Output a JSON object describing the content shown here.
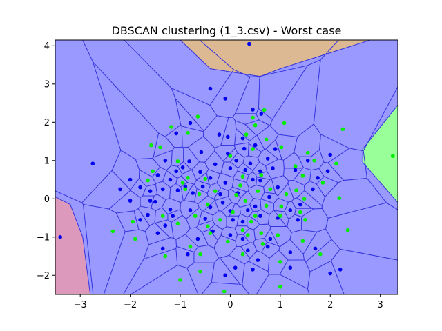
{
  "chart_data": {
    "type": "scatter",
    "title": "DBSCAN clustering (1_3.csv) - Worst case",
    "xlabel": "",
    "ylabel": "",
    "xlim": [
      -3.5,
      3.35
    ],
    "ylim": [
      -2.5,
      4.15
    ],
    "xticks": [
      -3,
      -2,
      -1,
      0,
      1,
      2,
      3
    ],
    "yticks": [
      -2,
      -1,
      0,
      1,
      2,
      3,
      4
    ],
    "grid": false,
    "colors": {
      "blue_region": "#9999ff",
      "cell_edge": "#3333dd",
      "orange_region": "#ddb993",
      "pink_region": "#dd99bb",
      "green_region": "#99ff99",
      "blue_points": "#0000ee",
      "green_points": "#00ee00"
    },
    "regions": [
      {
        "name": "orange",
        "polygon": [
          [
            -1.0,
            4.15
          ],
          [
            2.8,
            4.15
          ],
          [
            1.0,
            3.4
          ],
          [
            0.6,
            3.2
          ],
          [
            -0.4,
            3.4
          ]
        ]
      },
      {
        "name": "pink",
        "polygon": [
          [
            -3.5,
            0.05
          ],
          [
            -3.2,
            -0.15
          ],
          [
            -2.95,
            -1.0
          ],
          [
            -2.8,
            -2.5
          ],
          [
            -3.5,
            -2.5
          ]
        ]
      },
      {
        "name": "green",
        "polygon": [
          [
            3.35,
            2.45
          ],
          [
            2.65,
            1.3
          ],
          [
            2.65,
            0.95
          ],
          [
            3.35,
            -0.1
          ]
        ]
      }
    ],
    "series": [
      {
        "name": "blue",
        "points": [
          [
            0.38,
            4.05
          ],
          [
            -0.4,
            2.88
          ],
          [
            -0.1,
            2.62
          ],
          [
            0.45,
            2.33
          ],
          [
            0.62,
            2.22
          ],
          [
            -0.8,
            1.98
          ],
          [
            -0.22,
            1.68
          ],
          [
            -0.05,
            1.62
          ],
          [
            0.25,
            1.58
          ],
          [
            -1.08,
            1.71
          ],
          [
            -0.58,
            1.22
          ],
          [
            0.28,
            1.31
          ],
          [
            -0.82,
            0.98
          ],
          [
            -0.95,
            0.82
          ],
          [
            -1.3,
            1.0
          ],
          [
            -1.08,
            0.72
          ],
          [
            -0.6,
            0.7
          ],
          [
            -0.3,
            0.9
          ],
          [
            0.0,
            0.8
          ],
          [
            0.3,
            0.75
          ],
          [
            0.6,
            0.72
          ],
          [
            0.85,
            0.8
          ],
          [
            -1.45,
            0.62
          ],
          [
            -1.2,
            0.5
          ],
          [
            -0.4,
            0.55
          ],
          [
            0.6,
            0.48
          ],
          [
            -0.9,
            0.32
          ],
          [
            -0.55,
            0.32
          ],
          [
            -0.1,
            0.42
          ],
          [
            0.95,
            0.3
          ],
          [
            -1.6,
            0.2
          ],
          [
            -1.35,
            0.25
          ],
          [
            -1.05,
            0.22
          ],
          [
            -0.2,
            0.12
          ],
          [
            0.15,
            0.15
          ],
          [
            -2.0,
            -0.05
          ],
          [
            -1.5,
            -0.08
          ],
          [
            -1.2,
            -0.28
          ],
          [
            -0.8,
            -0.3
          ],
          [
            -0.4,
            -0.22
          ],
          [
            0.0,
            -0.32
          ],
          [
            0.5,
            -0.2
          ],
          [
            -1.65,
            -0.42
          ],
          [
            -1.15,
            -0.45
          ],
          [
            -0.5,
            -0.52
          ],
          [
            0.05,
            -0.55
          ],
          [
            0.25,
            -0.6
          ],
          [
            -1.8,
            -0.55
          ],
          [
            -1.3,
            -0.7
          ],
          [
            -0.35,
            -0.85
          ],
          [
            0.0,
            -0.95
          ],
          [
            0.25,
            -1.05
          ],
          [
            -0.65,
            -1.05
          ],
          [
            -1.35,
            -1.3
          ],
          [
            -0.85,
            -1.45
          ],
          [
            0.35,
            -1.35
          ],
          [
            0.55,
            -1.6
          ],
          [
            0.1,
            -1.8
          ],
          [
            -0.1,
            -2.0
          ],
          [
            0.45,
            -1.85
          ],
          [
            -2.2,
            0.25
          ],
          [
            -2.0,
            0.5
          ],
          [
            -1.8,
            0.3
          ],
          [
            -2.75,
            0.92
          ],
          [
            -3.4,
            -1.0
          ],
          [
            2.0,
            1.15
          ],
          [
            1.95,
            0.72
          ],
          [
            1.75,
            0.55
          ],
          [
            1.65,
            0.25
          ],
          [
            1.3,
            0.75
          ],
          [
            1.55,
            1.0
          ],
          [
            1.4,
            -0.15
          ],
          [
            1.2,
            -0.3
          ],
          [
            0.95,
            -0.5
          ],
          [
            1.35,
            -0.55
          ],
          [
            1.2,
            -1.4
          ],
          [
            0.8,
            -1.05
          ],
          [
            1.7,
            -1.3
          ],
          [
            2.0,
            -1.95
          ],
          [
            2.2,
            -1.85
          ],
          [
            1.2,
            -1.8
          ],
          [
            0.45,
            0.5
          ],
          [
            0.4,
            0.92
          ],
          [
            0.75,
            1.05
          ],
          [
            -0.05,
            1.18
          ],
          [
            0.12,
            1.0
          ],
          [
            0.9,
            1.3
          ],
          [
            0.5,
            1.4
          ],
          [
            -1.6,
            -0.05
          ],
          [
            -0.75,
            0.15
          ],
          [
            0.78,
            0.05
          ],
          [
            -0.15,
            -0.1
          ],
          [
            0.35,
            -0.3
          ],
          [
            0.6,
            -0.45
          ],
          [
            -1.45,
            -0.9
          ],
          [
            0.75,
            -1.25
          ]
        ]
      },
      {
        "name": "green",
        "points": [
          [
            0.68,
            2.32
          ],
          [
            0.45,
            2.12
          ],
          [
            -0.65,
            2.15
          ],
          [
            0.5,
            1.92
          ],
          [
            1.08,
            1.98
          ],
          [
            -1.18,
            1.88
          ],
          [
            2.25,
            1.82
          ],
          [
            -0.85,
            1.72
          ],
          [
            0.32,
            1.68
          ],
          [
            0.72,
            1.55
          ],
          [
            -1.58,
            1.4
          ],
          [
            -1.4,
            1.35
          ],
          [
            0.45,
            1.3
          ],
          [
            1.02,
            1.35
          ],
          [
            0.0,
            1.12
          ],
          [
            -1.05,
            0.98
          ],
          [
            1.3,
            0.85
          ],
          [
            1.68,
            1.0
          ],
          [
            2.12,
            0.92
          ],
          [
            -1.55,
            0.72
          ],
          [
            -0.85,
            0.55
          ],
          [
            -0.5,
            0.52
          ],
          [
            0.25,
            0.58
          ],
          [
            0.62,
            0.62
          ],
          [
            1.45,
            0.6
          ],
          [
            1.85,
            0.42
          ],
          [
            -1.65,
            0.48
          ],
          [
            -0.95,
            0.42
          ],
          [
            0.2,
            0.35
          ],
          [
            0.8,
            0.25
          ],
          [
            1.32,
            0.22
          ],
          [
            -0.62,
            0.12
          ],
          [
            0.12,
            0.1
          ],
          [
            1.12,
            0.12
          ],
          [
            1.48,
            0.0
          ],
          [
            2.18,
            0.02
          ],
          [
            -0.45,
            -0.15
          ],
          [
            0.3,
            -0.05
          ],
          [
            0.72,
            -0.18
          ],
          [
            1.02,
            -0.2
          ],
          [
            -1.35,
            -0.45
          ],
          [
            -0.7,
            -0.45
          ],
          [
            0.5,
            -0.45
          ],
          [
            1.0,
            -0.45
          ],
          [
            1.4,
            -0.35
          ],
          [
            -1.95,
            -0.6
          ],
          [
            -1.05,
            -0.65
          ],
          [
            -0.45,
            -0.72
          ],
          [
            0.42,
            -0.6
          ],
          [
            1.5,
            -0.55
          ],
          [
            -2.35,
            -0.85
          ],
          [
            -1.9,
            -1.05
          ],
          [
            -0.4,
            -0.9
          ],
          [
            0.25,
            -0.82
          ],
          [
            0.62,
            -0.9
          ],
          [
            0.95,
            -0.95
          ],
          [
            2.35,
            -0.82
          ],
          [
            -0.8,
            -1.25
          ],
          [
            -0.05,
            -1.12
          ],
          [
            0.65,
            -1.18
          ],
          [
            1.45,
            -1.1
          ],
          [
            1.8,
            -1.45
          ],
          [
            -1.3,
            -1.5
          ],
          [
            -0.6,
            -1.45
          ],
          [
            0.25,
            -1.45
          ],
          [
            1.0,
            -1.65
          ],
          [
            -0.6,
            -1.9
          ],
          [
            -1.0,
            -2.12
          ],
          [
            -0.12,
            -2.42
          ],
          [
            1.0,
            -2.3
          ],
          [
            3.25,
            1.12
          ],
          [
            -0.3,
            0.2
          ],
          [
            -0.2,
            -0.55
          ],
          [
            0.05,
            -0.35
          ],
          [
            0.55,
            0.2
          ],
          [
            0.35,
            -0.95
          ],
          [
            1.55,
            1.2
          ],
          [
            -0.9,
            0.25
          ]
        ]
      }
    ]
  }
}
